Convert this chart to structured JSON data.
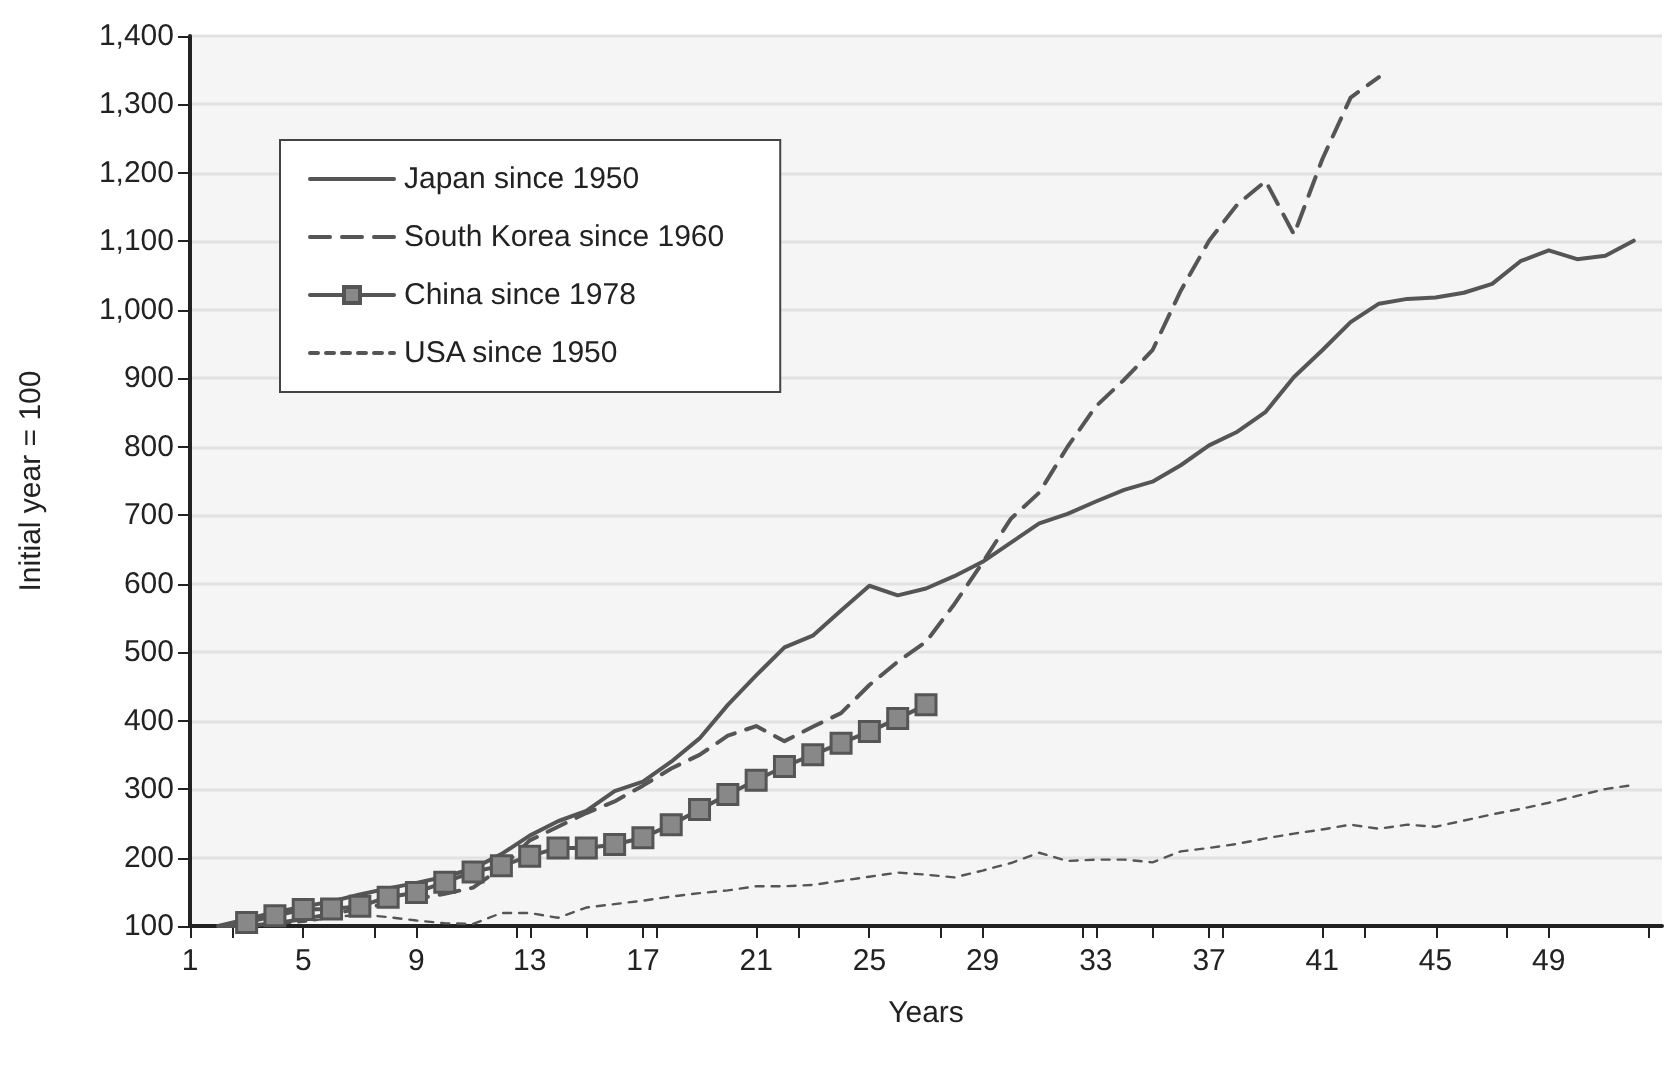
{
  "chart_data": {
    "type": "line",
    "xlabel": "Years",
    "ylabel": "Initial year = 100",
    "xlim": [
      1,
      53
    ],
    "xticks": [
      1,
      5,
      9,
      13,
      17,
      21,
      25,
      29,
      33,
      37,
      41,
      45,
      49
    ],
    "ylim": [
      100,
      1400
    ],
    "yticks": [
      100,
      200,
      300,
      400,
      500,
      600,
      700,
      800,
      900,
      {
        "value": 1000,
        "label": "1,000"
      },
      {
        "value": 1100,
        "label": "1,100"
      },
      {
        "value": 1200,
        "label": "1,200"
      },
      {
        "value": 1300,
        "label": "1,300"
      },
      {
        "value": 1400,
        "label": "1,400"
      }
    ],
    "grid": "y",
    "legend": "top left",
    "marker": "none",
    "series": [
      {
        "name": "Japan since 1950",
        "color": "#555555",
        "line_style": "solid",
        "x": [
          2,
          3,
          4,
          5,
          6,
          7,
          8,
          9,
          10,
          11,
          12,
          13,
          14,
          15,
          16,
          17,
          18,
          19,
          20,
          21,
          22,
          23,
          24,
          25,
          26,
          27,
          28,
          29,
          30,
          31,
          32,
          33,
          34,
          35,
          36,
          37,
          38,
          39,
          40,
          41,
          42,
          43,
          44,
          45,
          46,
          47,
          48,
          49,
          50,
          51,
          52
        ],
        "values": [
          100,
          110,
          120,
          128,
          136,
          146,
          155,
          163,
          172,
          184,
          205,
          232,
          253,
          268,
          297,
          311,
          340,
          374,
          423,
          466,
          507,
          524,
          561,
          597,
          583,
          593,
          611,
          632,
          660,
          688,
          702,
          720,
          737,
          749,
          773,
          802,
          822,
          851,
          902,
          941,
          982,
          1009,
          1016,
          1018,
          1025,
          1038,
          1071,
          1087,
          1074,
          1079,
          1101
        ]
      },
      {
        "name": "South Korea since 1960",
        "color": "#555555",
        "line_style": "dashed",
        "x": [
          2,
          3,
          4,
          5,
          6,
          7,
          8,
          9,
          10,
          11,
          12,
          13,
          14,
          15,
          16,
          17,
          18,
          19,
          20,
          21,
          22,
          23,
          24,
          25,
          26,
          27,
          28,
          29,
          30,
          31,
          32,
          33,
          34,
          35,
          36,
          37,
          38,
          39,
          40,
          41,
          42,
          43
        ],
        "values": [
          100,
          100,
          104,
          110,
          118,
          125,
          133,
          140,
          147,
          156,
          185,
          225,
          245,
          265,
          282,
          305,
          330,
          350,
          378,
          392,
          370,
          391,
          411,
          452,
          486,
          515,
          570,
          631,
          695,
          733,
          800,
          859,
          898,
          941,
          1028,
          1101,
          1154,
          1188,
          1110,
          1220,
          1310,
          1340
        ]
      },
      {
        "name": "China since 1978",
        "color": "#555555",
        "marker": "square",
        "line_style": "solid",
        "x": [
          3,
          4,
          5,
          6,
          7,
          8,
          9,
          10,
          11,
          12,
          13,
          14,
          15,
          16,
          17,
          18,
          19,
          20,
          21,
          22,
          23,
          24,
          25,
          26,
          27
        ],
        "values": [
          105,
          115,
          124,
          125,
          129,
          142,
          149,
          164,
          179,
          188,
          202,
          214,
          214,
          219,
          229,
          248,
          270,
          292,
          313,
          333,
          350,
          367,
          384,
          403,
          423
        ]
      },
      {
        "name": "USA since 1950",
        "color": "#555555",
        "line_style": "dotted",
        "x": [
          2,
          3,
          4,
          5,
          6,
          7,
          8,
          9,
          10,
          11,
          12,
          13,
          14,
          15,
          16,
          17,
          18,
          19,
          20,
          21,
          22,
          23,
          24,
          25,
          26,
          27,
          28,
          29,
          30,
          31,
          32,
          33,
          34,
          35,
          36,
          37,
          38,
          39,
          40,
          41,
          42,
          43,
          44,
          45,
          46,
          47,
          48,
          49,
          50,
          51,
          52
        ],
        "values": [
          100,
          100,
          103,
          106,
          112,
          117,
          113,
          108,
          104,
          103,
          119,
          119,
          112,
          127,
          132,
          137,
          143,
          148,
          152,
          158,
          158,
          160,
          166,
          172,
          178,
          175,
          171,
          181,
          192,
          207,
          195,
          197,
          197,
          193,
          209,
          214,
          220,
          228,
          235,
          241,
          248,
          242,
          248,
          245,
          254,
          263,
          271,
          280,
          290,
          300,
          306
        ]
      }
    ]
  }
}
